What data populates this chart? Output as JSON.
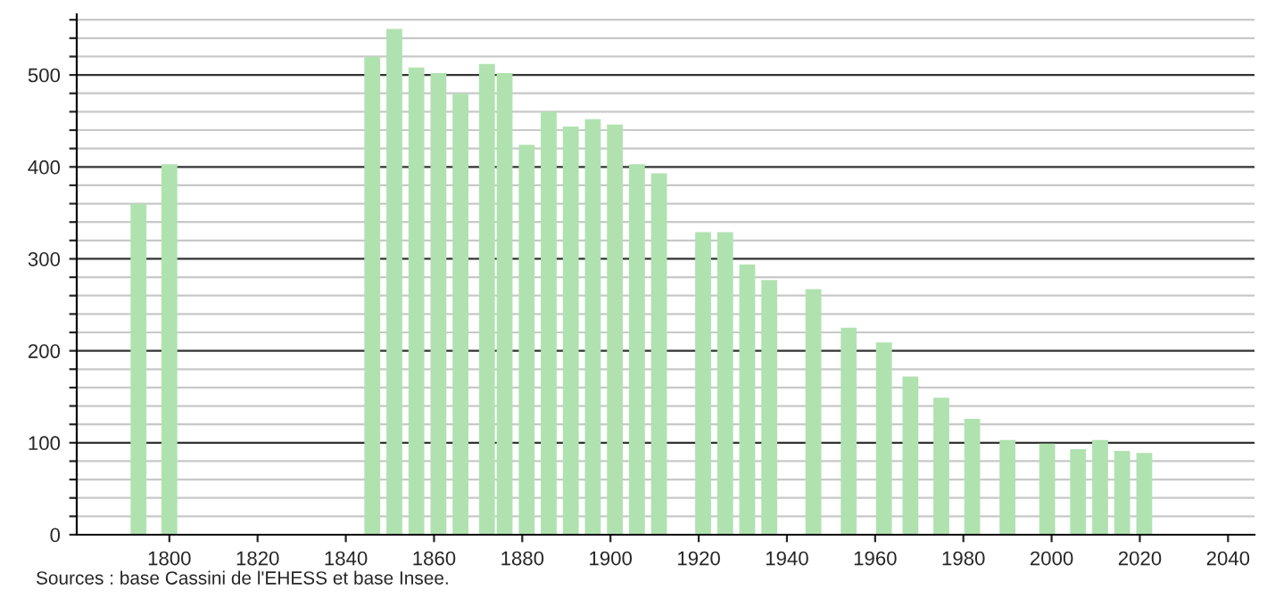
{
  "chart_data": {
    "type": "bar",
    "x": [
      1793,
      1800,
      1846,
      1851,
      1856,
      1861,
      1866,
      1872,
      1876,
      1881,
      1886,
      1891,
      1896,
      1901,
      1906,
      1911,
      1921,
      1926,
      1931,
      1936,
      1946,
      1954,
      1962,
      1968,
      1975,
      1982,
      1990,
      1999,
      2006,
      2011,
      2016,
      2021
    ],
    "values": [
      360,
      403,
      520,
      550,
      508,
      502,
      480,
      512,
      502,
      424,
      460,
      444,
      452,
      446,
      403,
      393,
      329,
      329,
      294,
      277,
      267,
      225,
      209,
      172,
      149,
      126,
      103,
      99,
      93,
      103,
      91,
      89
    ],
    "color": "#b0e2b0",
    "xlim": [
      1779,
      2046
    ],
    "xticks": [
      1800,
      1820,
      1840,
      1860,
      1880,
      1900,
      1920,
      1940,
      1960,
      1980,
      2000,
      2020,
      2040
    ],
    "ylim": [
      0,
      566
    ],
    "yticks": [
      0,
      {
        "value": 20,
        "label": null
      },
      {
        "value": 40,
        "label": null
      },
      {
        "value": 60,
        "label": null
      },
      {
        "value": 80,
        "label": null
      },
      100,
      {
        "value": 120,
        "label": null
      },
      {
        "value": 140,
        "label": null
      },
      {
        "value": 160,
        "label": null
      },
      {
        "value": 180,
        "label": null
      },
      200,
      {
        "value": 220,
        "label": null
      },
      {
        "value": 240,
        "label": null
      },
      {
        "value": 260,
        "label": null
      },
      {
        "value": 280,
        "label": null
      },
      300,
      {
        "value": 320,
        "label": null
      },
      {
        "value": 340,
        "label": null
      },
      {
        "value": 360,
        "label": null
      },
      {
        "value": 380,
        "label": null
      },
      400,
      {
        "value": 420,
        "label": null
      },
      {
        "value": 440,
        "label": null
      },
      {
        "value": 460,
        "label": null
      },
      {
        "value": 480,
        "label": null
      },
      500,
      {
        "value": 520,
        "label": null
      },
      {
        "value": 540,
        "label": null
      },
      {
        "value": 560,
        "label": null
      }
    ],
    "grid": "y",
    "annotations": [
      "Sources : base Cassini de l'EHESS et base Insee."
    ]
  }
}
